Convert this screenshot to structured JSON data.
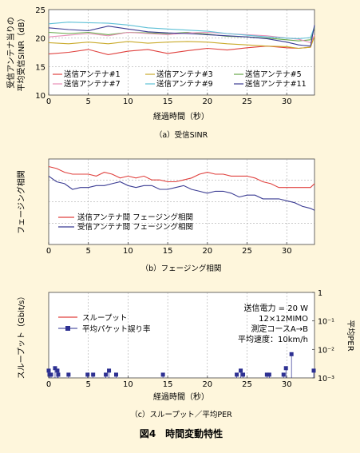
{
  "figure": {
    "title": "図4　時間変動特性"
  },
  "chart_data": [
    {
      "id": "a",
      "type": "line",
      "caption": "（a）受信SINR",
      "xlabel": "経過時間（秒）",
      "ylabel": [
        "受信アンテナ当りの",
        "平均受信SINR（dB）"
      ],
      "xlim": [
        0,
        33.5
      ],
      "ylim": [
        10,
        25
      ],
      "xticks": [
        0,
        5,
        10,
        15,
        20,
        25,
        30
      ],
      "yticks": [
        10,
        15,
        20,
        25
      ],
      "grid": true,
      "legend_position": "bottom-inside",
      "x": [
        0,
        2.5,
        5,
        7.5,
        10,
        12.5,
        15,
        17.5,
        20,
        22.5,
        25,
        27.5,
        30,
        31.5,
        33,
        33.5
      ],
      "series": [
        {
          "name": "送信アンテナ#1",
          "color": "#e0413e",
          "values": [
            17.2,
            17.5,
            18.0,
            17.1,
            17.7,
            18.0,
            17.3,
            17.8,
            18.2,
            17.9,
            18.3,
            18.6,
            18.3,
            18.2,
            18.4,
            20.5
          ]
        },
        {
          "name": "送信アンテナ#3",
          "color": "#c9aa2a",
          "values": [
            19.2,
            19.0,
            19.3,
            19.0,
            19.4,
            19.1,
            19.3,
            19.4,
            19.3,
            19.0,
            18.8,
            18.6,
            18.5,
            18.2,
            18.4,
            20.3
          ]
        },
        {
          "name": "送信アンテナ#5",
          "color": "#68a84a",
          "values": [
            21.0,
            20.8,
            21.0,
            20.6,
            21.0,
            20.9,
            20.8,
            21.0,
            20.7,
            20.3,
            20.2,
            20.0,
            19.7,
            19.5,
            19.7,
            21.8
          ]
        },
        {
          "name": "送信アンテナ#7",
          "color": "#e88fb8",
          "values": [
            20.2,
            20.5,
            20.8,
            20.4,
            21.0,
            20.8,
            20.6,
            20.9,
            21.0,
            20.8,
            20.6,
            20.4,
            20.0,
            19.8,
            19.2,
            20.5
          ]
        },
        {
          "name": "送信アンテナ#9",
          "color": "#5ec0d6",
          "values": [
            22.5,
            22.8,
            22.7,
            22.6,
            22.3,
            21.8,
            21.6,
            21.4,
            21.2,
            20.8,
            20.5,
            20.2,
            20.0,
            19.9,
            20.1,
            22.0
          ]
        },
        {
          "name": "送信アンテナ#11",
          "color": "#3b3c93",
          "values": [
            21.8,
            21.5,
            21.3,
            22.1,
            21.6,
            21.1,
            20.9,
            20.8,
            20.6,
            20.4,
            20.2,
            19.9,
            19.3,
            18.8,
            18.6,
            22.3
          ]
        }
      ]
    },
    {
      "id": "b",
      "type": "line",
      "caption": "（b）フェージング相関",
      "xlabel": "",
      "ylabel": "フェージング相関",
      "xlim": [
        0,
        33.5
      ],
      "ylim": [
        0,
        0.45
      ],
      "xticks": [
        0,
        5,
        10,
        15,
        20,
        25,
        30
      ],
      "yticks": [],
      "grid": true,
      "legend_position": "bottom-center-inside",
      "x": [
        0,
        1,
        2,
        3,
        4,
        5,
        6,
        7,
        8,
        9,
        10,
        11,
        12,
        13,
        14,
        15,
        16,
        17,
        18,
        19,
        20,
        21,
        22,
        23,
        24,
        25,
        26,
        27,
        28,
        29,
        30,
        31,
        32,
        33,
        33.5
      ],
      "series": [
        {
          "name": "送信アンテナ間 フェージング相関",
          "color": "#e0413e",
          "values": [
            0.41,
            0.4,
            0.38,
            0.37,
            0.37,
            0.37,
            0.36,
            0.38,
            0.37,
            0.35,
            0.36,
            0.35,
            0.36,
            0.34,
            0.34,
            0.33,
            0.33,
            0.34,
            0.35,
            0.37,
            0.38,
            0.37,
            0.37,
            0.36,
            0.36,
            0.36,
            0.35,
            0.33,
            0.32,
            0.3,
            0.3,
            0.3,
            0.3,
            0.3,
            0.32
          ]
        },
        {
          "name": "受信アンテナ間 フェージング相関",
          "color": "#3b3c93",
          "values": [
            0.36,
            0.33,
            0.32,
            0.29,
            0.3,
            0.3,
            0.31,
            0.31,
            0.32,
            0.33,
            0.31,
            0.3,
            0.31,
            0.31,
            0.29,
            0.29,
            0.3,
            0.31,
            0.29,
            0.28,
            0.27,
            0.28,
            0.28,
            0.27,
            0.25,
            0.26,
            0.26,
            0.24,
            0.24,
            0.24,
            0.23,
            0.22,
            0.2,
            0.19,
            0.18
          ]
        }
      ]
    },
    {
      "id": "c",
      "type": "scatter",
      "caption": "（c）スループット／平均PER",
      "xlabel": "経過時間（秒）",
      "ylabel": "スループット（Gbit/s）",
      "y2label": "平均PER",
      "xlim": [
        0,
        33.5
      ],
      "y2lim_log10": [
        -3,
        0
      ],
      "y2_tick_labels": [
        "1",
        "10⁻¹",
        "10⁻²",
        "10⁻³"
      ],
      "xticks": [
        0,
        5,
        10,
        15,
        20,
        25,
        30
      ],
      "grid": true,
      "series": [
        {
          "name": "スループット",
          "color": "#e0413e",
          "kind": "line"
        },
        {
          "name": "平均パケット誤り率",
          "color": "#2e3192",
          "kind": "stem-marker",
          "x": [
            0,
            0.1,
            0.3,
            0.8,
            1.1,
            1.2,
            2.5,
            4.9,
            5.6,
            7.2,
            7.6,
            8.5,
            14.4,
            23.7,
            24.2,
            24.5,
            27.5,
            27.8,
            29.6,
            29.9,
            30.6,
            33.4
          ],
          "values": [
            0.0018,
            0.0013,
            0.0013,
            0.0022,
            0.0018,
            0.0013,
            0.0013,
            0.0013,
            0.0013,
            0.0013,
            0.0018,
            0.0013,
            0.0013,
            0.0013,
            0.0018,
            0.0013,
            0.0013,
            0.0013,
            0.0013,
            0.0022,
            0.0068,
            0.0018
          ]
        }
      ],
      "annotation": [
        "送信電力 = 20 W",
        "12×12MIMO",
        "測定コースA→B",
        "平均速度：10km/h"
      ]
    }
  ]
}
